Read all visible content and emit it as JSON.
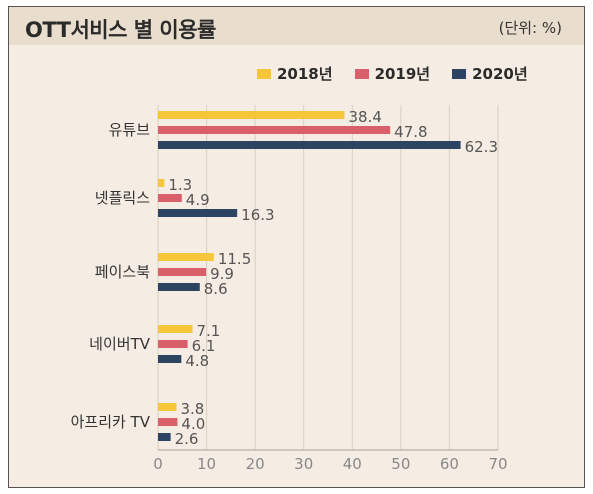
{
  "header": {
    "title": "OTT서비스 별 이용률",
    "unit": "(단위: %)"
  },
  "colors": {
    "y2018": "#f6c63a",
    "y2019": "#d9606a",
    "y2020": "#2c4362"
  },
  "chart_data": {
    "type": "bar",
    "orientation": "horizontal",
    "title": "OTT서비스 별 이용률",
    "unit": "(단위: %)",
    "categories": [
      "유튜브",
      "넷플릭스",
      "페이스북",
      "네이버TV",
      "아프리카 TV"
    ],
    "series": [
      {
        "name": "2018년",
        "values": [
          38.4,
          1.3,
          11.5,
          7.1,
          3.8
        ]
      },
      {
        "name": "2019년",
        "values": [
          47.8,
          4.9,
          9.9,
          6.1,
          4.0
        ]
      },
      {
        "name": "2020년",
        "values": [
          62.3,
          16.3,
          8.6,
          4.8,
          2.6
        ]
      }
    ],
    "value_labels": [
      [
        "38.4",
        "1.3",
        "11.5",
        "7.1",
        "3.8"
      ],
      [
        "47.8",
        "4.9",
        "9.9",
        "6.1",
        "4.0"
      ],
      [
        "62.3",
        "16.3",
        "8.6",
        "4.8",
        "2.6"
      ]
    ],
    "xlim": [
      0,
      70
    ],
    "xticks": [
      "0",
      "10",
      "20",
      "30",
      "40",
      "50",
      "60",
      "70"
    ],
    "grid": true,
    "legend_position": "top-right"
  }
}
